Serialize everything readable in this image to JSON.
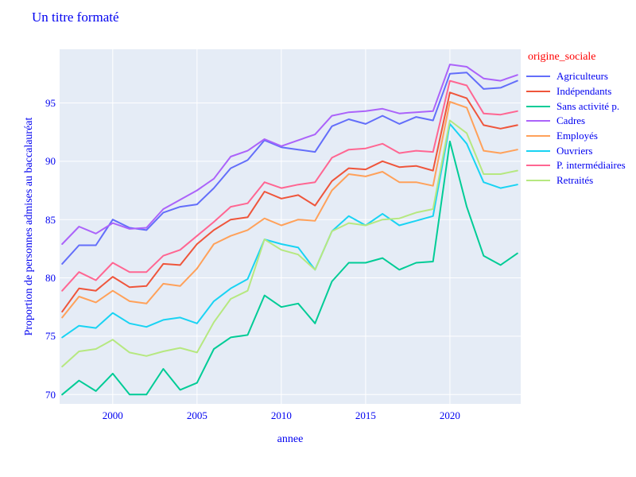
{
  "title": "Un titre formaté",
  "colors": {
    "text_blue": "#0000f0",
    "legend_title_red": "#ff0000",
    "plot_background": "#E5ECF6",
    "gridline": "#FFFFFF",
    "paper": "#FFFFFF"
  },
  "chart_data": {
    "type": "line",
    "title": "Un titre formaté",
    "xlabel": "annee",
    "ylabel": "Proportion de personnes admises au baccalauréat",
    "legend_title": "origine_sociale",
    "legend_position": "right",
    "grid": true,
    "x_range": [
      1996.85,
      2024.2
    ],
    "y_range": [
      69.2,
      99.6
    ],
    "x_ticks": [
      2000,
      2005,
      2010,
      2015,
      2020
    ],
    "y_ticks": [
      70,
      75,
      80,
      85,
      90,
      95
    ],
    "x": [
      1997,
      1998,
      1999,
      2000,
      2001,
      2002,
      2003,
      2004,
      2005,
      2006,
      2007,
      2008,
      2009,
      2010,
      2011,
      2012,
      2013,
      2014,
      2015,
      2016,
      2017,
      2018,
      2019,
      2020,
      2021,
      2022,
      2023,
      2024
    ],
    "series": [
      {
        "name": "Agriculteurs",
        "color": "#636EFA",
        "values": [
          81.2,
          82.8,
          82.8,
          85.0,
          84.3,
          84.1,
          85.6,
          86.1,
          86.3,
          87.7,
          89.4,
          90.1,
          91.8,
          91.2,
          91.0,
          90.8,
          93.0,
          93.6,
          93.2,
          93.9,
          93.2,
          93.8,
          93.5,
          97.5,
          97.6,
          96.2,
          96.3,
          96.9
        ]
      },
      {
        "name": "Indépendants",
        "color": "#EF553B",
        "values": [
          77.1,
          79.1,
          78.9,
          80.1,
          79.2,
          79.3,
          81.2,
          81.1,
          82.9,
          84.1,
          85.0,
          85.2,
          87.4,
          86.8,
          87.1,
          86.2,
          88.3,
          89.4,
          89.3,
          90.0,
          89.5,
          89.6,
          89.2,
          95.9,
          95.4,
          93.1,
          92.8,
          93.1
        ]
      },
      {
        "name": "Sans activité p.",
        "color": "#00CC96",
        "values": [
          70.0,
          71.2,
          70.3,
          71.8,
          70.0,
          70.0,
          72.2,
          70.4,
          71.0,
          73.9,
          74.9,
          75.1,
          78.5,
          77.5,
          77.8,
          76.1,
          79.7,
          81.3,
          81.3,
          81.7,
          80.7,
          81.3,
          81.4,
          91.7,
          86.1,
          81.9,
          81.1,
          82.1
        ]
      },
      {
        "name": "Cadres",
        "color": "#AB63FA",
        "values": [
          82.9,
          84.4,
          83.8,
          84.7,
          84.2,
          84.3,
          85.9,
          86.7,
          87.5,
          88.5,
          90.4,
          90.9,
          91.9,
          91.3,
          91.8,
          92.3,
          93.9,
          94.2,
          94.3,
          94.5,
          94.1,
          94.2,
          94.3,
          98.3,
          98.1,
          97.1,
          96.9,
          97.4
        ]
      },
      {
        "name": "Employés",
        "color": "#FFA15A",
        "values": [
          76.6,
          78.4,
          77.9,
          78.9,
          78.0,
          77.8,
          79.5,
          79.3,
          80.8,
          82.9,
          83.6,
          84.1,
          85.1,
          84.5,
          85.0,
          84.9,
          87.5,
          88.9,
          88.7,
          89.1,
          88.2,
          88.2,
          87.9,
          95.1,
          94.6,
          90.9,
          90.7,
          91.0
        ]
      },
      {
        "name": "Ouvriers",
        "color": "#19D3F3",
        "values": [
          74.9,
          75.9,
          75.7,
          77.0,
          76.1,
          75.8,
          76.4,
          76.6,
          76.1,
          78.0,
          79.1,
          79.9,
          83.3,
          82.9,
          82.6,
          80.7,
          84.0,
          85.3,
          84.5,
          85.5,
          84.5,
          84.9,
          85.3,
          93.2,
          91.5,
          88.2,
          87.7,
          88.0
        ]
      },
      {
        "name": "P. intermédiaires",
        "color": "#FF6692",
        "values": [
          78.9,
          80.5,
          79.8,
          81.3,
          80.5,
          80.5,
          81.9,
          82.4,
          83.6,
          84.8,
          86.1,
          86.4,
          88.2,
          87.7,
          88.0,
          88.2,
          90.3,
          91.0,
          91.1,
          91.5,
          90.7,
          90.9,
          90.8,
          96.9,
          96.5,
          94.1,
          94.0,
          94.3
        ]
      },
      {
        "name": "Retraités",
        "color": "#B6E880",
        "values": [
          72.4,
          73.7,
          73.9,
          74.7,
          73.6,
          73.3,
          73.7,
          74.0,
          73.6,
          76.2,
          78.2,
          78.9,
          83.3,
          82.4,
          82.0,
          80.7,
          84.0,
          84.7,
          84.5,
          85.0,
          85.1,
          85.6,
          85.9,
          93.5,
          92.4,
          88.9,
          88.9,
          89.2
        ]
      }
    ]
  }
}
